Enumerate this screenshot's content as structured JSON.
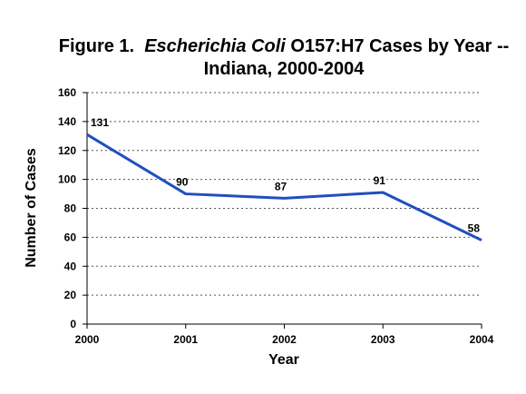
{
  "chart_data": {
    "type": "line",
    "title_parts": [
      {
        "text": "Figure 1.  ",
        "italic": false
      },
      {
        "text": "Escherichia Coli",
        "italic": true
      },
      {
        "text": " O157:H7 Cases by Year --",
        "italic": false
      }
    ],
    "subtitle": "Indiana, 2000-2004",
    "xlabel": "Year",
    "ylabel": "Number of Cases",
    "categories": [
      "2000",
      "2001",
      "2002",
      "2003",
      "2004"
    ],
    "series": [
      {
        "values": [
          131,
          90,
          87,
          91,
          58
        ],
        "color": "#1f4fbf"
      }
    ],
    "ylim": [
      0,
      160
    ],
    "yticks": [
      0,
      20,
      40,
      60,
      80,
      100,
      120,
      140,
      160
    ],
    "grid": true
  }
}
